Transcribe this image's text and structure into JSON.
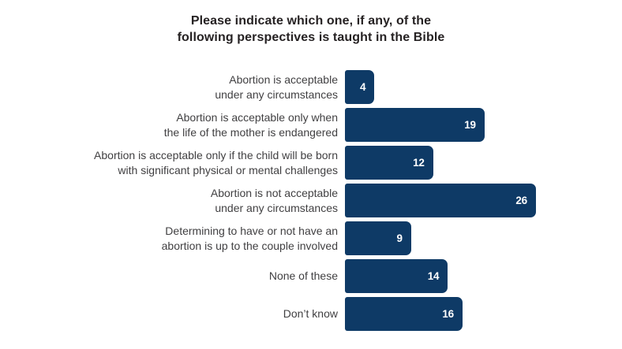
{
  "title_lines": [
    "Please indicate which one, if any, of the",
    "following perspectives is taught in the Bible"
  ],
  "chart_data": {
    "type": "bar",
    "orientation": "horizontal",
    "title": "Please indicate which one, if any, of the following perspectives is taught in the Bible",
    "xlabel": "",
    "ylabel": "",
    "xlim": [
      0,
      28
    ],
    "grid": false,
    "legend": false,
    "bar_color": "#0e3a66",
    "value_label_color": "#ffffff",
    "categories": [
      "Abortion is acceptable under any circumstances",
      "Abortion is acceptable only when the life of the mother is endangered",
      "Abortion is acceptable only if the child will be born with significant physical or mental challenges",
      "Abortion is not acceptable under any circumstances",
      "Determining to have or not have an abortion is up to the couple involved",
      "None of these",
      "Don’t know"
    ],
    "values": [
      4,
      19,
      12,
      26,
      9,
      14,
      16
    ],
    "rows": [
      {
        "label_lines": [
          "Abortion is acceptable",
          "under any circumstances"
        ],
        "value": 4
      },
      {
        "label_lines": [
          "Abortion is acceptable only when",
          "the life of the mother is endangered"
        ],
        "value": 19
      },
      {
        "label_lines": [
          "Abortion is acceptable only if the child will be born",
          "with significant physical or mental challenges"
        ],
        "value": 12
      },
      {
        "label_lines": [
          "Abortion is not acceptable",
          "under any circumstances"
        ],
        "value": 26
      },
      {
        "label_lines": [
          "Determining to have or not have an",
          "abortion is up to the couple involved"
        ],
        "value": 9
      },
      {
        "label_lines": [
          "None of these"
        ],
        "value": 14
      },
      {
        "label_lines": [
          "Don’t know"
        ],
        "value": 16
      }
    ]
  }
}
